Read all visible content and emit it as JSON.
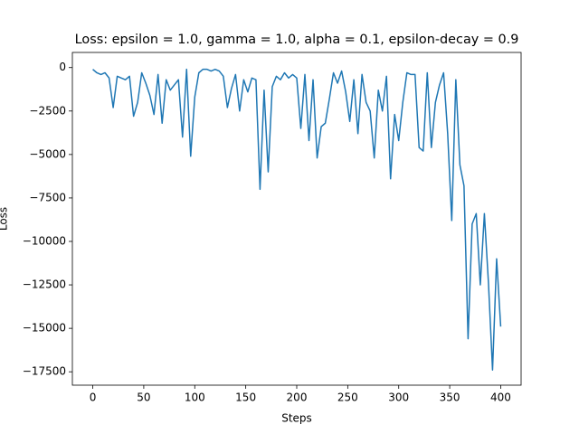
{
  "chart_data": {
    "type": "line",
    "title": "Loss: epsilon = 1.0, gamma = 1.0, alpha = 0.1, epsilon-decay = 0.9",
    "xlabel": "Steps",
    "ylabel": "Loss",
    "x": [
      0,
      4,
      8,
      12,
      16,
      20,
      24,
      28,
      32,
      36,
      40,
      44,
      48,
      52,
      56,
      60,
      64,
      68,
      72,
      76,
      80,
      84,
      88,
      92,
      96,
      100,
      104,
      108,
      112,
      116,
      120,
      124,
      128,
      132,
      136,
      140,
      144,
      148,
      152,
      156,
      160,
      164,
      168,
      172,
      176,
      180,
      184,
      188,
      192,
      196,
      200,
      204,
      208,
      212,
      216,
      220,
      224,
      228,
      232,
      236,
      240,
      244,
      248,
      252,
      256,
      260,
      264,
      268,
      272,
      276,
      280,
      284,
      288,
      292,
      296,
      300,
      304,
      308,
      312,
      316,
      320,
      324,
      328,
      332,
      336,
      340,
      344,
      348,
      352,
      356,
      360,
      364,
      368,
      372,
      376,
      380,
      384,
      388,
      392,
      396,
      400
    ],
    "series": [
      {
        "color": "#1f77b4",
        "values": [
          -100,
          -300,
          -400,
          -300,
          -600,
          -2300,
          -500,
          -600,
          -700,
          -500,
          -2800,
          -2000,
          -300,
          -900,
          -1600,
          -2700,
          -400,
          -3200,
          -700,
          -1300,
          -1000,
          -700,
          -4000,
          -100,
          -5100,
          -1700,
          -300,
          -100,
          -100,
          -200,
          -100,
          -200,
          -500,
          -2300,
          -1200,
          -400,
          -2500,
          -700,
          -1400,
          -600,
          -700,
          -7000,
          -1300,
          -6000,
          -1100,
          -500,
          -700,
          -300,
          -600,
          -400,
          -600,
          -3500,
          -400,
          -4200,
          -700,
          -5200,
          -3400,
          -3200,
          -1800,
          -300,
          -900,
          -200,
          -1400,
          -3100,
          -700,
          -3800,
          -400,
          -2000,
          -2500,
          -5200,
          -1300,
          -2500,
          -500,
          -6400,
          -2700,
          -4200,
          -2000,
          -300,
          -400,
          -400,
          -4600,
          -4800,
          -300,
          -4600,
          -2000,
          -1000,
          -300,
          -3800,
          -8800,
          -700,
          -5600,
          -6800,
          -15600,
          -9000,
          -8400,
          -12500,
          -8400,
          -12400,
          -17400,
          -11000,
          -14900
        ]
      }
    ],
    "xlim": [
      -20,
      420
    ],
    "ylim": [
      -18270,
      870
    ],
    "xticks": [
      0,
      50,
      100,
      150,
      200,
      250,
      300,
      350,
      400
    ],
    "yticks": [
      0,
      {
        "value": -2500,
        "label": "−2500"
      },
      {
        "value": -5000,
        "label": "−5000"
      },
      {
        "value": -7500,
        "label": "−7500"
      },
      {
        "value": -10000,
        "label": "−10000"
      },
      {
        "value": -12500,
        "label": "−12500"
      },
      {
        "value": -15000,
        "label": "−15000"
      },
      {
        "value": -17500,
        "label": "−17500"
      }
    ]
  }
}
